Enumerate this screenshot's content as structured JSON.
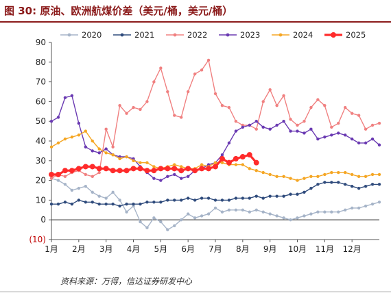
{
  "header": {
    "figure_label": "图 30:",
    "title": "原油、欧洲航煤价差（美元/桶，美元/桶）"
  },
  "source": "资料来源：万得，信达证券研发中心",
  "chart_data": {
    "type": "line",
    "title": "",
    "xlabel": "",
    "ylabel": "",
    "ylim": [
      -10,
      90
    ],
    "yticks": [
      -10,
      0,
      10,
      20,
      30,
      40,
      50,
      60,
      70,
      80,
      90
    ],
    "ytick_labels": [
      "(10)",
      "0",
      "10",
      "20",
      "30",
      "40",
      "50",
      "60",
      "70",
      "80",
      "90"
    ],
    "xlim": [
      0,
      12
    ],
    "x_tick_positions": [
      0,
      1,
      2,
      3,
      4,
      5,
      6,
      7,
      8,
      9,
      10,
      11
    ],
    "x_tick_labels": [
      "1月",
      "2月",
      "3月",
      "4月",
      "5月",
      "6月",
      "7月",
      "8月",
      "9月",
      "10月",
      "11月",
      "12月"
    ],
    "x_unit": "month",
    "grid": false,
    "legend_position": "top",
    "series": [
      {
        "name": "2020",
        "color": "#A6B4C8",
        "marker": "circle",
        "x": [
          0.0,
          0.25,
          0.5,
          0.75,
          1.0,
          1.25,
          1.5,
          1.75,
          2.0,
          2.25,
          2.5,
          2.75,
          3.0,
          3.25,
          3.5,
          3.75,
          4.0,
          4.25,
          4.5,
          4.75,
          5.0,
          5.25,
          5.5,
          5.75,
          6.0,
          6.25,
          6.5,
          6.75,
          7.0,
          7.25,
          7.5,
          7.75,
          8.0,
          8.25,
          8.5,
          8.75,
          9.0,
          9.25,
          9.5,
          9.75,
          10.0,
          10.25,
          10.5,
          10.75,
          11.0,
          11.25,
          11.5,
          11.75,
          12.0
        ],
        "values": [
          21,
          20,
          18,
          15,
          16,
          17,
          14,
          12,
          11,
          14,
          10,
          4,
          7,
          -1,
          -4,
          1,
          -1,
          -5,
          -3,
          0,
          3,
          1,
          2,
          3,
          6,
          4,
          5,
          5,
          5,
          4,
          5,
          4,
          3,
          2,
          1,
          0,
          1,
          2,
          3,
          4,
          4,
          4,
          4,
          5,
          6,
          6,
          7,
          8,
          9
        ]
      },
      {
        "name": "2021",
        "color": "#2F4B7C",
        "marker": "circle",
        "x": [
          0.0,
          0.25,
          0.5,
          0.75,
          1.0,
          1.25,
          1.5,
          1.75,
          2.0,
          2.25,
          2.5,
          2.75,
          3.0,
          3.25,
          3.5,
          3.75,
          4.0,
          4.25,
          4.5,
          4.75,
          5.0,
          5.25,
          5.5,
          5.75,
          6.0,
          6.25,
          6.5,
          6.75,
          7.0,
          7.25,
          7.5,
          7.75,
          8.0,
          8.25,
          8.5,
          8.75,
          9.0,
          9.25,
          9.5,
          9.75,
          10.0,
          10.25,
          10.5,
          10.75,
          11.0,
          11.25,
          11.5,
          11.75,
          12.0
        ],
        "values": [
          8,
          8,
          9,
          8,
          10,
          9,
          9,
          8,
          8,
          8,
          7,
          8,
          8,
          8,
          9,
          9,
          9,
          10,
          10,
          10,
          11,
          10,
          11,
          11,
          10,
          10,
          10,
          11,
          11,
          11,
          12,
          11,
          12,
          12,
          12,
          13,
          13,
          14,
          16,
          18,
          19,
          19,
          19,
          18,
          17,
          16,
          17,
          18,
          18
        ]
      },
      {
        "name": "2022",
        "color": "#F08080",
        "marker": "circle",
        "x": [
          0.0,
          0.25,
          0.5,
          0.75,
          1.0,
          1.25,
          1.5,
          1.75,
          2.0,
          2.25,
          2.5,
          2.75,
          3.0,
          3.25,
          3.5,
          3.75,
          4.0,
          4.25,
          4.5,
          4.75,
          5.0,
          5.25,
          5.5,
          5.75,
          6.0,
          6.25,
          6.5,
          6.75,
          7.0,
          7.25,
          7.5,
          7.75,
          8.0,
          8.25,
          8.5,
          8.75,
          9.0,
          9.25,
          9.5,
          9.75,
          10.0,
          10.25,
          10.5,
          10.75,
          11.0,
          11.25,
          11.5,
          11.75,
          12.0
        ],
        "values": [
          21,
          23,
          22,
          24,
          25,
          23,
          22,
          24,
          46,
          37,
          58,
          54,
          57,
          56,
          60,
          70,
          77,
          65,
          53,
          52,
          65,
          74,
          76,
          81,
          64,
          58,
          57,
          50,
          48,
          48,
          46,
          60,
          66,
          58,
          63,
          51,
          48,
          50,
          57,
          61,
          58,
          47,
          49,
          57,
          54,
          53,
          46,
          48,
          49
        ]
      },
      {
        "name": "2023",
        "color": "#6A3AB2",
        "marker": "circle",
        "x": [
          0.0,
          0.25,
          0.5,
          0.75,
          1.0,
          1.25,
          1.5,
          1.75,
          2.0,
          2.25,
          2.5,
          2.75,
          3.0,
          3.25,
          3.5,
          3.75,
          4.0,
          4.25,
          4.5,
          4.75,
          5.0,
          5.25,
          5.5,
          5.75,
          6.0,
          6.25,
          6.5,
          6.75,
          7.0,
          7.25,
          7.5,
          7.75,
          8.0,
          8.25,
          8.5,
          8.75,
          9.0,
          9.25,
          9.5,
          9.75,
          10.0,
          10.25,
          10.5,
          10.75,
          11.0,
          11.25,
          11.5,
          11.75,
          12.0
        ],
        "values": [
          50,
          52,
          62,
          63,
          49,
          37,
          35,
          34,
          36,
          33,
          32,
          32,
          31,
          27,
          24,
          21,
          20,
          22,
          23,
          21,
          22,
          25,
          26,
          28,
          29,
          33,
          39,
          45,
          47,
          48,
          50,
          47,
          46,
          48,
          50,
          45,
          45,
          44,
          46,
          41,
          42,
          43,
          44,
          43,
          41,
          39,
          39,
          41,
          38
        ]
      },
      {
        "name": "2024",
        "color": "#F5A623",
        "marker": "circle",
        "x": [
          0.0,
          0.25,
          0.5,
          0.75,
          1.0,
          1.25,
          1.5,
          1.75,
          2.0,
          2.25,
          2.5,
          2.75,
          3.0,
          3.25,
          3.5,
          3.75,
          4.0,
          4.25,
          4.5,
          4.75,
          5.0,
          5.25,
          5.5,
          5.75,
          6.0,
          6.25,
          6.5,
          6.75,
          7.0,
          7.25,
          7.5,
          7.75,
          8.0,
          8.25,
          8.5,
          8.75,
          9.0,
          9.25,
          9.5,
          9.75,
          10.0,
          10.25,
          10.5,
          10.75,
          11.0,
          11.25,
          11.5,
          11.75,
          12.0
        ],
        "values": [
          37,
          39,
          41,
          42,
          43,
          45,
          40,
          36,
          34,
          33,
          31,
          32,
          30,
          29,
          29,
          27,
          26,
          27,
          28,
          27,
          26,
          26,
          28,
          27,
          29,
          29,
          28,
          28,
          28,
          26,
          25,
          24,
          23,
          22,
          22,
          21,
          20,
          21,
          22,
          22,
          23,
          24,
          24,
          24,
          23,
          22,
          22,
          23,
          23
        ]
      },
      {
        "name": "2025",
        "color": "#FF2B2B",
        "marker": "circle",
        "x": [
          0.0,
          0.25,
          0.5,
          0.75,
          1.0,
          1.25,
          1.5,
          1.75,
          2.0,
          2.25,
          2.5,
          2.75,
          3.0,
          3.25,
          3.5,
          3.75,
          4.0,
          4.25,
          4.5,
          4.75,
          5.0,
          5.25,
          5.5,
          5.75,
          6.0,
          6.25,
          6.5,
          6.75,
          7.0,
          7.25,
          7.5
        ],
        "values": [
          23,
          23,
          25,
          25,
          26,
          27,
          27,
          26,
          26,
          25,
          25,
          25,
          26,
          26,
          25,
          25,
          26,
          26,
          26,
          25,
          26,
          25,
          26,
          26,
          27,
          31,
          29,
          31,
          32,
          33,
          29
        ]
      }
    ]
  }
}
